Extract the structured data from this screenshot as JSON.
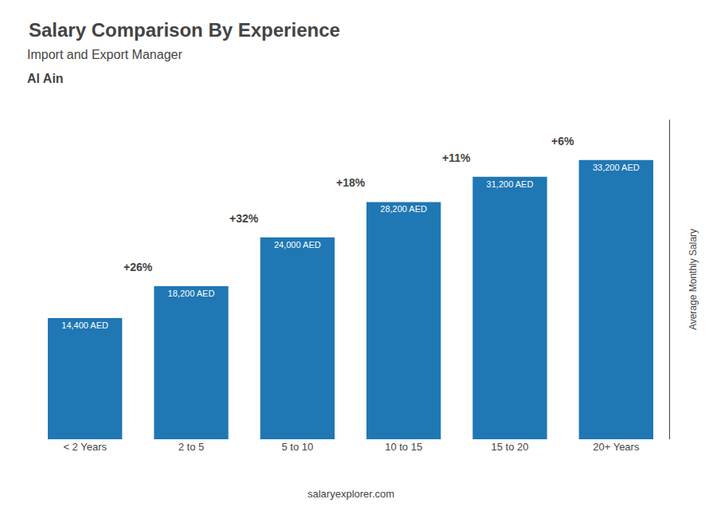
{
  "chart_data": {
    "type": "bar",
    "title": "Salary Comparison By Experience",
    "subtitle": "Import and Export Manager",
    "city": "Al Ain",
    "ylabel": "Average Monthly Salary",
    "source": "salaryexplorer.com",
    "categories": [
      "< 2 Years",
      "2 to 5",
      "5 to 10",
      "10 to 15",
      "15 to 20",
      "20+ Years"
    ],
    "values": [
      14400,
      18200,
      24000,
      28200,
      31200,
      33200
    ],
    "value_labels": [
      "14,400 AED",
      "18,200 AED",
      "24,000 AED",
      "28,200 AED",
      "31,200 AED",
      "33,200 AED"
    ],
    "data_labels": true,
    "annotations": [
      {
        "text": "+26%",
        "from": "< 2 Years",
        "to": "2 to 5"
      },
      {
        "text": "+32%",
        "from": "2 to 5",
        "to": "5 to 10"
      },
      {
        "text": "+18%",
        "from": "5 to 10",
        "to": "10 to 15"
      },
      {
        "text": "+11%",
        "from": "10 to 15",
        "to": "15 to 20"
      },
      {
        "text": "+6%",
        "from": "15 to 20",
        "to": "20+ Years"
      }
    ],
    "ylim": [
      0,
      38000
    ],
    "tick_labels": "x",
    "grid": false
  }
}
